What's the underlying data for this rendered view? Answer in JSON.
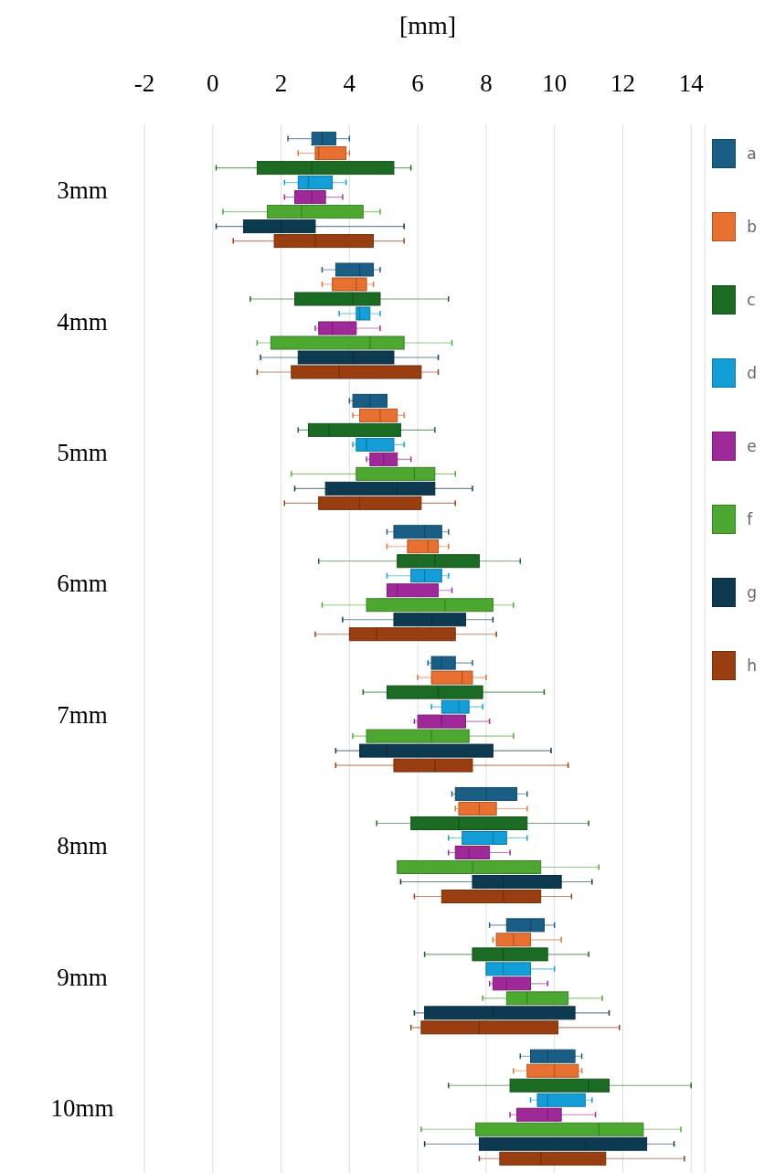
{
  "chart_data": {
    "type": "box",
    "orientation": "horizontal",
    "xlabel": "[mm]",
    "categories": [
      "3mm",
      "4mm",
      "5mm",
      "6mm",
      "7mm",
      "8mm",
      "9mm",
      "10mm"
    ],
    "xlim": [
      -2,
      14.4
    ],
    "xticks": [
      -2,
      0,
      2,
      4,
      6,
      8,
      10,
      12,
      14
    ],
    "grid": "x",
    "legend": "right",
    "series": [
      {
        "name": "a",
        "color": "#1a5e86",
        "boxes": [
          {
            "low": 2.2,
            "q1": 2.9,
            "median": 3.2,
            "q3": 3.6,
            "high": 4.0
          },
          {
            "low": 3.2,
            "q1": 3.6,
            "median": 4.3,
            "q3": 4.7,
            "high": 4.9
          },
          {
            "low": 4.0,
            "q1": 4.1,
            "median": 4.6,
            "q3": 5.1,
            "high": 5.1
          },
          {
            "low": 5.1,
            "q1": 5.3,
            "median": 6.2,
            "q3": 6.7,
            "high": 6.9
          },
          {
            "low": 6.3,
            "q1": 6.4,
            "median": 6.7,
            "q3": 7.1,
            "high": 7.6
          },
          {
            "low": 7.0,
            "q1": 7.1,
            "median": 8.0,
            "q3": 8.9,
            "high": 9.2
          },
          {
            "low": 8.1,
            "q1": 8.6,
            "median": 9.3,
            "q3": 9.7,
            "high": 10.0
          },
          {
            "low": 9.0,
            "q1": 9.3,
            "median": 9.8,
            "q3": 10.6,
            "high": 10.8
          }
        ]
      },
      {
        "name": "b",
        "color": "#e87030",
        "boxes": [
          {
            "low": 2.5,
            "q1": 3.0,
            "median": 3.1,
            "q3": 3.9,
            "high": 4.0
          },
          {
            "low": 3.2,
            "q1": 3.5,
            "median": 4.2,
            "q3": 4.5,
            "high": 4.7
          },
          {
            "low": 4.1,
            "q1": 4.3,
            "median": 4.9,
            "q3": 5.4,
            "high": 5.6
          },
          {
            "low": 5.1,
            "q1": 5.7,
            "median": 6.3,
            "q3": 6.6,
            "high": 6.9
          },
          {
            "low": 6.0,
            "q1": 6.4,
            "median": 7.3,
            "q3": 7.6,
            "high": 8.0
          },
          {
            "low": 7.1,
            "q1": 7.2,
            "median": 7.8,
            "q3": 8.3,
            "high": 9.2
          },
          {
            "low": 8.2,
            "q1": 8.3,
            "median": 8.8,
            "q3": 9.3,
            "high": 10.2
          },
          {
            "low": 8.8,
            "q1": 9.2,
            "median": 10.0,
            "q3": 10.7,
            "high": 10.8
          }
        ]
      },
      {
        "name": "c",
        "color": "#1c6b24",
        "boxes": [
          {
            "low": 0.1,
            "q1": 1.3,
            "median": 2.9,
            "q3": 5.3,
            "high": 5.8
          },
          {
            "low": 1.1,
            "q1": 2.4,
            "median": 4.1,
            "q3": 4.9,
            "high": 6.9
          },
          {
            "low": 2.5,
            "q1": 2.8,
            "median": 3.4,
            "q3": 5.5,
            "high": 6.5
          },
          {
            "low": 3.1,
            "q1": 5.4,
            "median": 6.5,
            "q3": 7.8,
            "high": 9.0
          },
          {
            "low": 4.4,
            "q1": 5.1,
            "median": 6.6,
            "q3": 7.9,
            "high": 9.7
          },
          {
            "low": 4.8,
            "q1": 5.8,
            "median": 7.2,
            "q3": 9.2,
            "high": 11.0
          },
          {
            "low": 6.2,
            "q1": 7.6,
            "median": 8.5,
            "q3": 9.8,
            "high": 11.0
          },
          {
            "low": 6.9,
            "q1": 8.7,
            "median": 11.0,
            "q3": 11.6,
            "high": 14.0
          }
        ]
      },
      {
        "name": "d",
        "color": "#139ed8",
        "boxes": [
          {
            "low": 2.1,
            "q1": 2.5,
            "median": 2.8,
            "q3": 3.5,
            "high": 3.9
          },
          {
            "low": 3.7,
            "q1": 4.2,
            "median": 4.3,
            "q3": 4.6,
            "high": 4.9
          },
          {
            "low": 4.1,
            "q1": 4.2,
            "median": 4.5,
            "q3": 5.3,
            "high": 5.6
          },
          {
            "low": 5.1,
            "q1": 5.8,
            "median": 6.2,
            "q3": 6.7,
            "high": 6.9
          },
          {
            "low": 6.4,
            "q1": 6.7,
            "median": 7.2,
            "q3": 7.5,
            "high": 7.9
          },
          {
            "low": 6.9,
            "q1": 7.3,
            "median": 8.2,
            "q3": 8.6,
            "high": 9.2
          },
          {
            "low": 8.0,
            "q1": 8.0,
            "median": 8.5,
            "q3": 9.3,
            "high": 10.0
          },
          {
            "low": 9.3,
            "q1": 9.5,
            "median": 9.8,
            "q3": 10.9,
            "high": 11.1
          }
        ]
      },
      {
        "name": "e",
        "color": "#a0299a",
        "boxes": [
          {
            "low": 2.1,
            "q1": 2.4,
            "median": 2.9,
            "q3": 3.3,
            "high": 3.8
          },
          {
            "low": 3.0,
            "q1": 3.1,
            "median": 3.5,
            "q3": 4.2,
            "high": 4.9
          },
          {
            "low": 4.5,
            "q1": 4.6,
            "median": 5.0,
            "q3": 5.4,
            "high": 5.8
          },
          {
            "low": 5.1,
            "q1": 5.1,
            "median": 5.4,
            "q3": 6.6,
            "high": 7.0
          },
          {
            "low": 5.9,
            "q1": 6.0,
            "median": 6.7,
            "q3": 7.4,
            "high": 8.1
          },
          {
            "low": 6.9,
            "q1": 7.1,
            "median": 7.5,
            "q3": 8.1,
            "high": 8.7
          },
          {
            "low": 8.1,
            "q1": 8.2,
            "median": 8.6,
            "q3": 9.3,
            "high": 9.8
          },
          {
            "low": 8.7,
            "q1": 8.9,
            "median": 9.8,
            "q3": 10.2,
            "high": 11.2
          }
        ]
      },
      {
        "name": "f",
        "color": "#4da832",
        "boxes": [
          {
            "low": 0.3,
            "q1": 1.6,
            "median": 2.6,
            "q3": 4.4,
            "high": 4.9
          },
          {
            "low": 1.3,
            "q1": 1.7,
            "median": 4.6,
            "q3": 5.6,
            "high": 7.0
          },
          {
            "low": 2.3,
            "q1": 4.2,
            "median": 5.9,
            "q3": 6.5,
            "high": 7.1
          },
          {
            "low": 3.2,
            "q1": 4.5,
            "median": 6.8,
            "q3": 8.2,
            "high": 8.8
          },
          {
            "low": 4.1,
            "q1": 4.5,
            "median": 6.4,
            "q3": 7.5,
            "high": 8.8
          },
          {
            "low": 5.4,
            "q1": 5.4,
            "median": 7.6,
            "q3": 9.6,
            "high": 11.3
          },
          {
            "low": 7.9,
            "q1": 8.6,
            "median": 9.2,
            "q3": 10.4,
            "high": 11.4
          },
          {
            "low": 6.1,
            "q1": 7.7,
            "median": 11.3,
            "q3": 12.6,
            "high": 13.7
          }
        ]
      },
      {
        "name": "g",
        "color": "#0d3a50",
        "boxes": [
          {
            "low": 0.1,
            "q1": 0.9,
            "median": 2.0,
            "q3": 3.0,
            "high": 5.6
          },
          {
            "low": 1.4,
            "q1": 2.5,
            "median": 4.1,
            "q3": 5.3,
            "high": 6.6
          },
          {
            "low": 2.4,
            "q1": 3.3,
            "median": 5.4,
            "q3": 6.5,
            "high": 7.6
          },
          {
            "low": 3.8,
            "q1": 5.3,
            "median": 6.4,
            "q3": 7.4,
            "high": 8.2
          },
          {
            "low": 3.6,
            "q1": 4.3,
            "median": 5.1,
            "q3": 8.2,
            "high": 9.9
          },
          {
            "low": 5.5,
            "q1": 7.6,
            "median": 8.5,
            "q3": 10.2,
            "high": 11.1
          },
          {
            "low": 5.9,
            "q1": 6.2,
            "median": 8.2,
            "q3": 10.6,
            "high": 11.6
          },
          {
            "low": 6.2,
            "q1": 7.8,
            "median": 10.9,
            "q3": 12.7,
            "high": 13.5
          }
        ]
      },
      {
        "name": "h",
        "color": "#983e11",
        "boxes": [
          {
            "low": 0.6,
            "q1": 1.8,
            "median": 3.0,
            "q3": 4.7,
            "high": 5.6
          },
          {
            "low": 1.3,
            "q1": 2.3,
            "median": 3.7,
            "q3": 6.1,
            "high": 6.6
          },
          {
            "low": 2.1,
            "q1": 3.1,
            "median": 4.3,
            "q3": 6.1,
            "high": 7.1
          },
          {
            "low": 3.0,
            "q1": 4.0,
            "median": 4.8,
            "q3": 7.1,
            "high": 8.3
          },
          {
            "low": 3.6,
            "q1": 5.3,
            "median": 6.5,
            "q3": 7.6,
            "high": 10.4
          },
          {
            "low": 5.9,
            "q1": 6.7,
            "median": 8.5,
            "q3": 9.6,
            "high": 10.5
          },
          {
            "low": 5.8,
            "q1": 6.1,
            "median": 7.8,
            "q3": 10.1,
            "high": 11.9
          },
          {
            "low": 7.8,
            "q1": 8.4,
            "median": 9.6,
            "q3": 11.5,
            "high": 13.8
          }
        ]
      }
    ]
  }
}
